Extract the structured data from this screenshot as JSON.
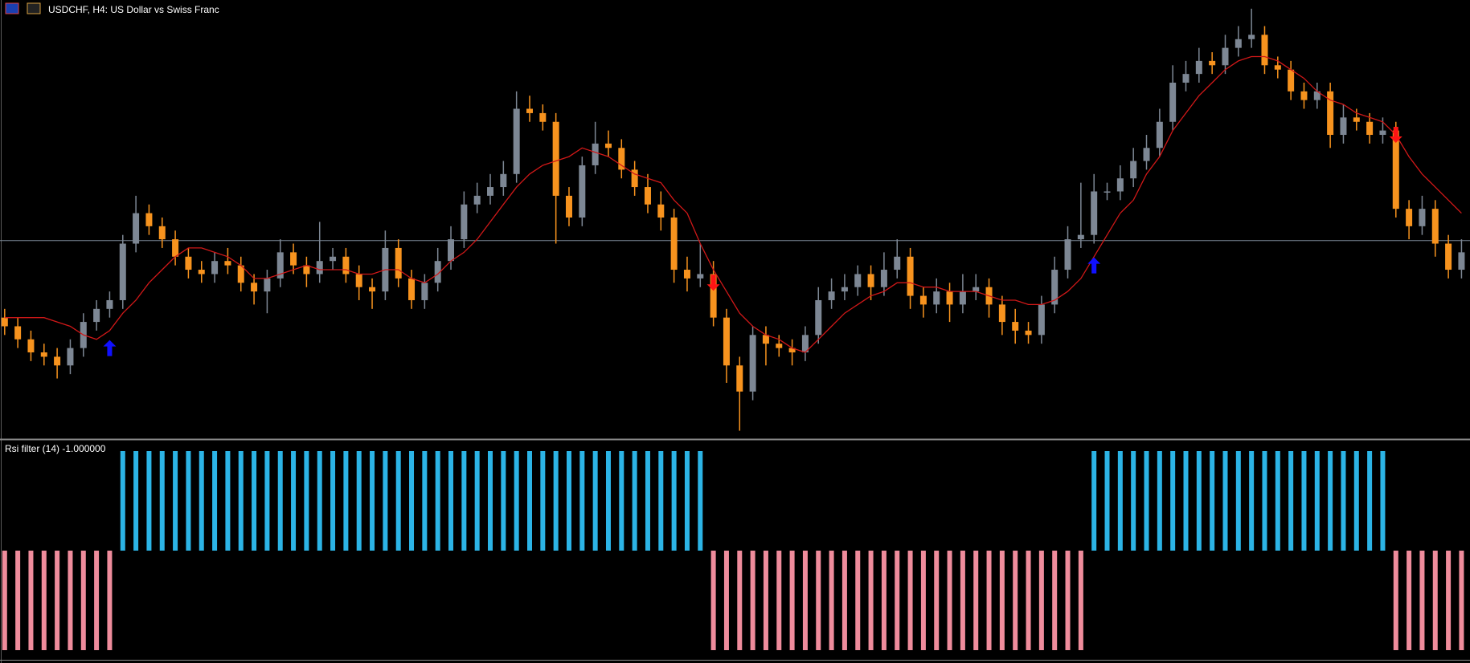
{
  "chart_data": [
    {
      "type": "candlestick",
      "title": "USDCHF, H4:  US Dollar vs Swiss Franc",
      "up_color": "#7d8794",
      "down_color": "#f7931e",
      "ylim": [
        0,
        100
      ],
      "open": [
        27,
        25,
        22,
        19,
        18,
        16,
        20,
        26,
        29,
        31,
        44,
        51,
        48,
        45,
        41,
        38,
        37,
        40,
        39,
        35,
        33,
        36,
        42,
        39,
        37,
        40,
        41,
        37,
        34,
        33,
        43,
        36,
        31,
        35,
        40,
        45,
        53,
        55,
        57,
        60,
        75,
        74,
        72,
        55,
        50,
        62,
        67,
        66,
        61,
        57,
        53,
        50,
        38,
        36,
        37,
        27,
        16,
        10,
        23,
        21,
        20,
        19,
        23,
        31,
        33,
        34,
        37,
        34,
        38,
        41,
        32,
        30,
        33,
        30,
        33,
        34,
        30,
        26,
        24,
        23,
        30,
        38,
        45,
        46,
        56,
        56,
        59,
        63,
        66,
        72,
        81,
        83,
        86,
        85,
        89,
        91,
        92,
        85,
        84,
        79,
        77,
        79,
        69,
        73,
        72,
        69,
        70,
        52,
        48,
        52,
        44,
        38
      ],
      "high": [
        29,
        27,
        24,
        21,
        20,
        22,
        28,
        31,
        33,
        46,
        55,
        53,
        50,
        47,
        43,
        40,
        42,
        43,
        41,
        37,
        38,
        45,
        44,
        41,
        49,
        43,
        43,
        39,
        36,
        47,
        45,
        38,
        37,
        43,
        48,
        56,
        58,
        60,
        63,
        79,
        78,
        76,
        74,
        57,
        64,
        72,
        70,
        68,
        63,
        60,
        56,
        52,
        41,
        44,
        40,
        29,
        18,
        25,
        25,
        23,
        22,
        25,
        34,
        36,
        37,
        39,
        39,
        42,
        45,
        43,
        34,
        36,
        35,
        37,
        37,
        36,
        32,
        29,
        26,
        32,
        41,
        48,
        58,
        60,
        58,
        62,
        66,
        69,
        75,
        85,
        86,
        89,
        88,
        92,
        94,
        98,
        94,
        87,
        86,
        81,
        81,
        81,
        76,
        75,
        74,
        73,
        72,
        54,
        55,
        54,
        46,
        45
      ],
      "low": [
        23,
        20,
        17,
        16,
        13,
        14,
        18,
        24,
        27,
        29,
        42,
        46,
        43,
        39,
        36,
        35,
        35,
        37,
        33,
        30,
        28,
        34,
        37,
        34,
        35,
        38,
        35,
        31,
        29,
        31,
        34,
        29,
        29,
        33,
        38,
        43,
        51,
        53,
        55,
        58,
        72,
        70,
        44,
        48,
        48,
        60,
        64,
        59,
        55,
        51,
        47,
        35,
        33,
        34,
        25,
        12,
        1,
        8,
        16,
        18,
        16,
        17,
        21,
        29,
        31,
        32,
        31,
        32,
        36,
        29,
        27,
        28,
        26,
        28,
        31,
        27,
        23,
        21,
        21,
        21,
        28,
        36,
        43,
        44,
        54,
        54,
        57,
        61,
        64,
        70,
        79,
        81,
        83,
        83,
        87,
        89,
        83,
        82,
        77,
        75,
        75,
        66,
        67,
        70,
        67,
        67,
        50,
        45,
        46,
        41,
        36,
        36
      ],
      "close": [
        25,
        22,
        19,
        18,
        16,
        20,
        26,
        29,
        31,
        44,
        51,
        48,
        45,
        41,
        38,
        37,
        40,
        39,
        35,
        33,
        36,
        42,
        39,
        37,
        40,
        41,
        37,
        34,
        33,
        43,
        36,
        31,
        35,
        40,
        45,
        53,
        55,
        57,
        60,
        75,
        74,
        72,
        55,
        50,
        62,
        67,
        66,
        61,
        57,
        53,
        50,
        38,
        36,
        37,
        27,
        16,
        10,
        23,
        21,
        20,
        19,
        23,
        31,
        33,
        34,
        37,
        34,
        38,
        41,
        32,
        30,
        33,
        30,
        33,
        34,
        30,
        26,
        24,
        23,
        30,
        38,
        45,
        46,
        56,
        56,
        59,
        63,
        66,
        72,
        81,
        83,
        86,
        85,
        89,
        91,
        92,
        85,
        84,
        79,
        77,
        79,
        69,
        73,
        72,
        69,
        70,
        52,
        48,
        52,
        44,
        38,
        42
      ],
      "ma": {
        "color": "#d01818",
        "values": [
          27,
          27,
          27,
          27,
          26,
          25,
          23,
          22,
          24,
          28,
          31,
          35,
          38,
          41,
          43,
          43,
          42,
          41,
          39,
          36,
          36,
          37,
          38,
          39,
          38,
          38,
          38,
          37,
          37,
          38,
          38,
          36,
          35,
          37,
          40,
          42,
          45,
          49,
          53,
          57,
          60,
          62,
          63,
          64,
          66,
          65,
          64,
          62,
          60,
          59,
          58,
          54,
          51,
          44,
          38,
          33,
          28,
          25,
          23,
          22,
          20,
          19,
          22,
          25,
          28,
          30,
          32,
          33,
          35,
          35,
          34,
          34,
          33,
          33,
          33,
          32,
          31,
          31,
          30,
          30,
          31,
          33,
          36,
          41,
          46,
          51,
          54,
          60,
          64,
          70,
          74,
          78,
          81,
          84,
          86,
          87,
          87,
          86,
          84,
          82,
          79,
          77,
          76,
          74,
          73,
          72,
          69,
          64,
          60,
          57,
          54,
          51
        ]
      },
      "hline": {
        "value": 44.7,
        "color": "#7a8796"
      },
      "up_arrows": {
        "color": "#1010ff",
        "points": [
          {
            "x": 8,
            "y": 20
          },
          {
            "x": 83,
            "y": 39
          }
        ]
      },
      "down_arrows": {
        "color": "#ff1414",
        "points": [
          {
            "x": 54,
            "y": 35
          },
          {
            "x": 106,
            "y": 69
          }
        ]
      }
    },
    {
      "type": "histogram",
      "title": "Rsi filter (14) -1.000000",
      "pos_color": "#2cb4e6",
      "neg_color": "#ef8c9c",
      "ylim": [
        -1,
        1
      ],
      "values": [
        -1,
        -1,
        -1,
        -1,
        -1,
        -1,
        -1,
        -1,
        -1,
        1,
        1,
        1,
        1,
        1,
        1,
        1,
        1,
        1,
        1,
        1,
        1,
        1,
        1,
        1,
        1,
        1,
        1,
        1,
        1,
        1,
        1,
        1,
        1,
        1,
        1,
        1,
        1,
        1,
        1,
        1,
        1,
        1,
        1,
        1,
        1,
        1,
        1,
        1,
        1,
        1,
        1,
        1,
        1,
        1,
        -1,
        -1,
        -1,
        -1,
        -1,
        -1,
        -1,
        -1,
        -1,
        -1,
        -1,
        -1,
        -1,
        -1,
        -1,
        -1,
        -1,
        -1,
        -1,
        -1,
        -1,
        -1,
        -1,
        -1,
        -1,
        -1,
        -1,
        -1,
        -1,
        1,
        1,
        1,
        1,
        1,
        1,
        1,
        1,
        1,
        1,
        1,
        1,
        1,
        1,
        1,
        1,
        1,
        1,
        1,
        1,
        1,
        1,
        1,
        -1,
        -1,
        -1,
        -1,
        -1,
        -1
      ]
    }
  ]
}
